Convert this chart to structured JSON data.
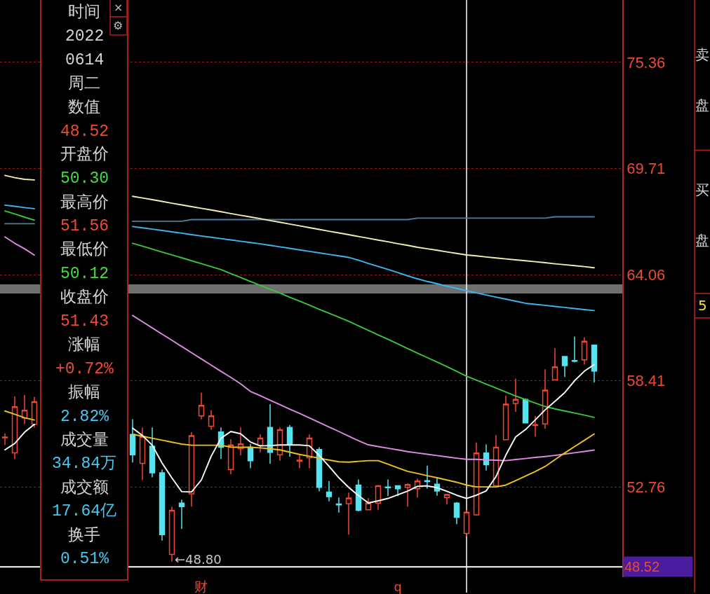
{
  "chart_data": {
    "type": "candlestick",
    "categories": [
      null,
      null,
      null,
      null,
      null,
      null,
      null,
      null,
      null,
      null,
      null,
      null,
      null,
      null,
      null,
      null,
      null,
      null,
      null,
      null,
      "财",
      null,
      null,
      null,
      null,
      null,
      null,
      null,
      null,
      null,
      null,
      null,
      null,
      null,
      null,
      null,
      null,
      null,
      null,
      null,
      "q",
      null,
      null,
      null,
      null,
      null,
      null,
      null,
      null,
      null,
      null,
      null,
      null,
      null,
      null,
      null,
      null,
      null,
      null,
      null,
      null
    ],
    "ohlc": [
      [
        55.38,
        55.62,
        55.0,
        55.42
      ],
      [
        54.58,
        57.59,
        54.25,
        57.03
      ],
      [
        56.44,
        57.67,
        56.11,
        56.85
      ],
      [
        56.1,
        57.56,
        55.92,
        57.3
      ],
      null,
      null,
      null,
      null,
      null,
      null,
      null,
      null,
      null,
      [
        55.56,
        56.37,
        54.07,
        54.48
      ],
      [
        54.02,
        55.93,
        53.14,
        55.44
      ],
      [
        54.94,
        55.93,
        53.28,
        53.52
      ],
      [
        53.52,
        53.7,
        49.92,
        50.23
      ],
      [
        49.18,
        51.72,
        48.8,
        51.53
      ],
      [
        51.91,
        52.1,
        50.54,
        51.72
      ],
      [
        52.4,
        55.68,
        51.72,
        55.5
      ],
      [
        56.55,
        57.79,
        56.37,
        57.11
      ],
      [
        56.0,
        56.86,
        55.81,
        56.55
      ],
      [
        55.69,
        55.93,
        54.26,
        54.88
      ],
      [
        53.7,
        55.31,
        53.45,
        55.0
      ],
      [
        54.81,
        55.93,
        54.44,
        55.06
      ],
      [
        54.88,
        55.06,
        53.76,
        54.16
      ],
      [
        54.98,
        55.56,
        54.61,
        55.37
      ],
      [
        55.93,
        57.17,
        54.01,
        54.61
      ],
      [
        54.48,
        55.93,
        54.16,
        55.81
      ],
      [
        55.93,
        56.06,
        54.38,
        55.03
      ],
      [
        54.15,
        54.51,
        53.76,
        54.19
      ],
      [
        54.32,
        55.56,
        53.76,
        55.37
      ],
      [
        54.76,
        54.88,
        52.53,
        52.75
      ],
      [
        52.5,
        53.08,
        52.0,
        52.25
      ],
      [
        51.86,
        52.21,
        51.41,
        51.82
      ],
      [
        51.88,
        52.47,
        50.23,
        52.18
      ],
      [
        52.87,
        53.17,
        51.47,
        51.53
      ],
      [
        51.56,
        52.18,
        51.53,
        51.91
      ],
      [
        51.91,
        52.87,
        51.56,
        52.83
      ],
      [
        52.77,
        53.17,
        52.28,
        52.73
      ],
      [
        52.83,
        52.85,
        52.28,
        52.67
      ],
      [
        52.75,
        52.96,
        51.72,
        52.9
      ],
      [
        52.67,
        53.21,
        52.21,
        53.08
      ],
      [
        53.1,
        53.9,
        52.67,
        53.06
      ],
      [
        52.92,
        53.29,
        52.3,
        52.55
      ],
      [
        52.21,
        52.4,
        51.84,
        52.37
      ],
      [
        51.91,
        51.97,
        50.79,
        51.16
      ],
      [
        50.3,
        51.56,
        50.12,
        51.43
      ],
      [
        51.29,
        55.13,
        51.25,
        54.57
      ],
      [
        54.57,
        55.03,
        53.64,
        53.95
      ],
      [
        52.83,
        55.52,
        52.8,
        54.88
      ],
      [
        55.28,
        57.63,
        55.25,
        57.17
      ],
      [
        57.21,
        58.53,
        56.76,
        57.42
      ],
      [
        57.42,
        57.48,
        56.15,
        56.18
      ],
      [
        56.04,
        56.55,
        55.44,
        56.08
      ],
      [
        56.12,
        59.03,
        55.87,
        57.92
      ],
      [
        58.47,
        60.15,
        58.45,
        59.16
      ],
      [
        59.71,
        59.73,
        58.62,
        59.22
      ],
      [
        59.49,
        60.77,
        59.4,
        59.45
      ],
      [
        59.53,
        60.73,
        59.28,
        60.52
      ],
      [
        60.31,
        60.33,
        58.33,
        58.93
      ]
    ],
    "colors": [
      "#f04830",
      "#f04830",
      "#f04830",
      "#f04830",
      null,
      null,
      null,
      null,
      null,
      null,
      null,
      null,
      null,
      "#54e4f0",
      "#f04830",
      "#54e4f0",
      "#54e4f0",
      "#f04830",
      "#54e4f0",
      "#f04830",
      "#f04830",
      "#f04830",
      "#54e4f0",
      "#f04830",
      "#f04830",
      "#54e4f0",
      "#f04830",
      "#54e4f0",
      "#f04830",
      "#54e4f0",
      "#f04830",
      "#f04830",
      "#54e4f0",
      "#54e4f0",
      "#54e4f0",
      "#f04830",
      "#54e4f0",
      "#f04830",
      "#f04830",
      "#54e4f0",
      "#54e4f0",
      "#f04830",
      "#f04830",
      "#54e4f0",
      "#54e4f0",
      "#f04830",
      "#54e4f0",
      "#f04830",
      "#f04830",
      "#54e4f0",
      "#f04830",
      "#f04830",
      "#f04830",
      "#54e4f0",
      "#f04830",
      "#f04830",
      "#f04830",
      "#54e4f0",
      "#54e4f0",
      "#f04830",
      "#54e4f0"
    ],
    "series": [
      {
        "type": "line",
        "color": "#4a7fa0",
        "values": [
          66.77,
          66.77,
          66.77,
          66.77,
          null,
          null,
          null,
          null,
          null,
          null,
          null,
          null,
          null,
          66.9,
          66.9,
          66.9,
          66.9,
          66.9,
          66.9,
          66.99,
          66.99,
          66.99,
          66.99,
          66.99,
          66.99,
          66.99,
          66.99,
          66.99,
          66.99,
          66.99,
          66.99,
          66.99,
          66.99,
          66.99,
          66.99,
          66.99,
          66.99,
          66.99,
          66.99,
          66.99,
          66.99,
          66.99,
          67.07,
          67.07,
          67.07,
          67.07,
          67.07,
          67.07,
          67.07,
          67.07,
          67.07,
          67.07,
          67.07,
          67.07,
          67.07,
          67.07,
          67.14,
          67.14,
          67.14,
          67.14,
          67.14
        ]
      },
      {
        "type": "line",
        "color": "#f3eeb0",
        "values": [
          69.34,
          69.22,
          69.13,
          69.1,
          null,
          null,
          null,
          null,
          null,
          null,
          null,
          null,
          null,
          68.23,
          68.14,
          68.05,
          67.96,
          67.86,
          67.77,
          67.68,
          67.59,
          67.5,
          67.41,
          67.31,
          67.22,
          67.13,
          67.04,
          66.94,
          66.85,
          66.75,
          66.66,
          66.56,
          66.47,
          66.37,
          66.28,
          66.19,
          66.09,
          66.0,
          65.9,
          65.81,
          65.71,
          65.62,
          65.52,
          65.44,
          65.36,
          65.27,
          65.19,
          65.11,
          65.06,
          65.0,
          64.95,
          64.9,
          64.85,
          64.8,
          64.75,
          64.7,
          64.64,
          64.59,
          64.54,
          64.49,
          64.43
        ]
      },
      {
        "type": "line",
        "color": "#3fb4f0",
        "values": [
          67.76,
          67.7,
          67.63,
          67.57,
          null,
          null,
          null,
          null,
          null,
          null,
          null,
          null,
          null,
          66.62,
          66.55,
          66.48,
          66.41,
          66.34,
          66.27,
          66.19,
          66.12,
          66.05,
          65.98,
          65.91,
          65.84,
          65.77,
          65.7,
          65.62,
          65.54,
          65.46,
          65.38,
          65.3,
          65.22,
          65.14,
          65.06,
          64.98,
          64.83,
          64.66,
          64.5,
          64.34,
          64.17,
          64.0,
          63.84,
          63.7,
          63.58,
          63.45,
          63.33,
          63.21,
          63.09,
          62.98,
          62.87,
          62.76,
          62.65,
          62.54,
          62.48,
          62.43,
          62.37,
          62.32,
          62.26,
          62.2,
          62.15
        ]
      },
      {
        "type": "line",
        "color": "#3cc43c",
        "values": [
          67.45,
          67.29,
          67.12,
          66.96,
          null,
          null,
          null,
          null,
          null,
          null,
          null,
          null,
          null,
          65.73,
          65.58,
          65.42,
          65.26,
          65.11,
          64.96,
          64.8,
          64.65,
          64.49,
          64.33,
          64.12,
          63.91,
          63.7,
          63.49,
          63.29,
          63.08,
          62.86,
          62.65,
          62.44,
          62.22,
          62.01,
          61.8,
          61.58,
          61.34,
          61.1,
          60.86,
          60.62,
          60.38,
          60.13,
          59.89,
          59.65,
          59.41,
          59.17,
          58.92,
          58.66,
          58.45,
          58.24,
          58.03,
          57.82,
          57.61,
          57.42,
          57.23,
          57.05,
          56.92,
          56.81,
          56.7,
          56.59,
          56.47
        ]
      },
      {
        "type": "line",
        "color": "#e08ae6",
        "values": [
          66.07,
          65.73,
          65.44,
          65.1,
          null,
          null,
          null,
          null,
          null,
          null,
          null,
          null,
          null,
          61.89,
          61.56,
          61.23,
          60.9,
          60.57,
          60.24,
          59.91,
          59.58,
          59.25,
          58.92,
          58.6,
          58.25,
          57.85,
          57.62,
          57.38,
          57.15,
          56.91,
          56.68,
          56.44,
          56.2,
          55.96,
          55.72,
          55.47,
          55.23,
          55.01,
          54.92,
          54.83,
          54.74,
          54.65,
          54.58,
          54.51,
          54.44,
          54.37,
          54.3,
          54.24,
          54.24,
          54.21,
          54.19,
          54.17,
          54.23,
          54.28,
          54.34,
          54.39,
          54.45,
          54.52,
          54.59,
          54.66,
          54.73
        ]
      },
      {
        "type": "line",
        "color": "#f0c020",
        "values": [
          56.81,
          56.64,
          56.45,
          56.33,
          null,
          null,
          null,
          null,
          null,
          null,
          null,
          null,
          null,
          55.57,
          55.47,
          55.36,
          55.26,
          55.15,
          55.05,
          54.99,
          54.99,
          54.99,
          54.99,
          54.89,
          54.88,
          54.88,
          54.85,
          54.8,
          54.74,
          54.62,
          54.5,
          54.4,
          54.3,
          54.2,
          54.11,
          54.09,
          54.13,
          54.17,
          54.17,
          53.98,
          53.79,
          53.6,
          53.49,
          53.37,
          53.26,
          53.14,
          53.02,
          52.87,
          52.77,
          52.77,
          52.77,
          52.87,
          53.11,
          53.35,
          53.59,
          53.86,
          54.22,
          54.58,
          54.92,
          55.25,
          55.59
        ]
      },
      {
        "type": "line",
        "color": "#ffffff",
        "values": [
          54.74,
          55.08,
          55.68,
          56.1,
          null,
          null,
          null,
          null,
          null,
          null,
          null,
          null,
          null,
          55.9,
          55.51,
          54.99,
          54.04,
          53.25,
          52.52,
          52.5,
          53.14,
          54.4,
          55.36,
          55.72,
          55.6,
          55.16,
          54.95,
          54.97,
          55.0,
          55.0,
          55.0,
          54.96,
          54.45,
          53.87,
          53.26,
          52.75,
          52.31,
          51.92,
          52.03,
          52.16,
          52.35,
          52.55,
          52.8,
          52.83,
          52.73,
          52.54,
          52.33,
          52.16,
          52.33,
          52.56,
          53.32,
          54.46,
          55.43,
          55.82,
          56.34,
          56.87,
          57.32,
          57.79,
          58.42,
          58.93,
          59.28
        ]
      }
    ],
    "ylim": [
      47.97,
      78.67
    ],
    "yticks": [
      52.76,
      58.41,
      64.06,
      69.71,
      75.36
    ],
    "grid": "y",
    "bands": [
      {
        "axis": "y",
        "from": 63.06,
        "to": 63.54,
        "color": "#707070"
      }
    ],
    "ref_lines": [
      {
        "axis": "y",
        "value": 48.52,
        "label": "48.52",
        "color": "#ffffff"
      }
    ],
    "annotations": [
      "时间",
      "2022",
      "0614",
      "周二",
      "数值",
      "48.52",
      "开盘价",
      "50.30",
      "最高价",
      "51.56",
      "最低价",
      "50.12",
      "收盘价",
      "51.43",
      "涨幅",
      "+0.72%",
      "振幅",
      "2.82%",
      "成交量",
      "34.84万",
      "成交额",
      "17.64亿",
      "换手",
      "0.51%",
      "×",
      "⚙",
      "卖盘",
      "买盘",
      "5",
      "←48.80"
    ]
  }
}
